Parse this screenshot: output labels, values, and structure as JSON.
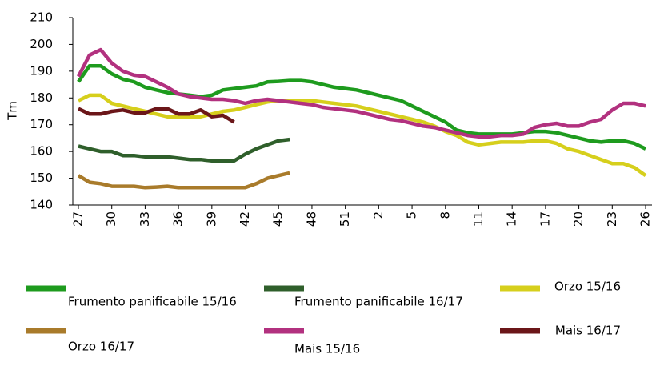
{
  "chart_data": {
    "type": "line",
    "y_label": "Tm",
    "categories": [
      "27",
      null,
      null,
      "30",
      null,
      null,
      "33",
      null,
      null,
      "36",
      null,
      null,
      "39",
      null,
      null,
      "42",
      null,
      null,
      "45",
      null,
      null,
      "48",
      null,
      null,
      "51",
      null,
      null,
      "2",
      null,
      null,
      "5",
      null,
      null,
      "8",
      null,
      null,
      "11",
      null,
      null,
      "14",
      null,
      null,
      "17",
      null,
      null,
      "20",
      null,
      null,
      "23",
      null,
      null,
      "26"
    ],
    "ylim": [
      140,
      210
    ],
    "yticks": [
      140,
      150,
      160,
      170,
      180,
      190,
      200,
      210
    ],
    "series": [
      {
        "name": "Frumento panificabile 15/16",
        "color": "#1e9b1e",
        "values": [
          186,
          192,
          192,
          189,
          187,
          186,
          184,
          183,
          182,
          181.5,
          181,
          180.5,
          181,
          183,
          183.5,
          184,
          184.5,
          186,
          186.2,
          186.5,
          186.5,
          186,
          185,
          184,
          183.5,
          183,
          182,
          181,
          180,
          179,
          177,
          175,
          173,
          171,
          168,
          167,
          166.5,
          166.5,
          166.5,
          166.5,
          167,
          167.5,
          167.5,
          167,
          166,
          165,
          164,
          163.5,
          164,
          164,
          163,
          161
        ]
      },
      {
        "name": "Frumento panificabile 16/17",
        "color": "#2f5f2b",
        "values": [
          162,
          161,
          160,
          160,
          158.5,
          158.5,
          158,
          158,
          158,
          157.5,
          157,
          157,
          156.5,
          156.5,
          156.5,
          159,
          161,
          162.5,
          164,
          164.5,
          null,
          null,
          null,
          null,
          null,
          null,
          null,
          null,
          null,
          null,
          null,
          null,
          null,
          null,
          null,
          null,
          null,
          null,
          null,
          null,
          null,
          null,
          null,
          null,
          null,
          null,
          null,
          null,
          null,
          null,
          null,
          null
        ]
      },
      {
        "name": "Orzo 15/16",
        "color": "#d6cf1c",
        "values": [
          179,
          181,
          181,
          178,
          177,
          176,
          175,
          174,
          173,
          173,
          173,
          173,
          174,
          175,
          175.5,
          176.5,
          177.5,
          178.5,
          179,
          179,
          179,
          179,
          178.5,
          178,
          177.5,
          177,
          176,
          175,
          174,
          173,
          172,
          171,
          169.5,
          167.5,
          166,
          163.5,
          162.5,
          163,
          163.5,
          163.5,
          163.5,
          164,
          164,
          163,
          161,
          160,
          158.5,
          157,
          155.5,
          155.5,
          154,
          151
        ]
      },
      {
        "name": "Orzo 16/17",
        "color": "#a97b2b",
        "values": [
          151,
          148.5,
          148,
          147,
          147,
          147,
          146.5,
          146.7,
          147,
          146.5,
          146.5,
          146.5,
          146.5,
          146.5,
          146.5,
          146.5,
          148,
          150,
          151,
          152,
          null,
          null,
          null,
          null,
          null,
          null,
          null,
          null,
          null,
          null,
          null,
          null,
          null,
          null,
          null,
          null,
          null,
          null,
          null,
          null,
          null,
          null,
          null,
          null,
          null,
          null,
          null,
          null,
          null,
          null,
          null,
          null
        ]
      },
      {
        "name": "Mais 15/16",
        "color": "#b2317f",
        "values": [
          188,
          196,
          198,
          193,
          190,
          188.5,
          188,
          186,
          184,
          181.5,
          180.5,
          180,
          179.5,
          179.5,
          179,
          178,
          179,
          179.5,
          179,
          178.5,
          178,
          177.5,
          176.5,
          176,
          175.5,
          175,
          174,
          173,
          172,
          171.5,
          170.5,
          169.5,
          169,
          168,
          167,
          166,
          165.5,
          165.5,
          166,
          166,
          166.5,
          169,
          170,
          170.5,
          169.5,
          169.5,
          171,
          172,
          175.5,
          178,
          178,
          177
        ]
      },
      {
        "name": "Mais 16/17",
        "color": "#6b1619",
        "values": [
          176,
          174,
          174,
          175,
          175.5,
          174.5,
          174.5,
          176,
          176,
          174,
          174,
          175.5,
          173,
          173.5,
          171,
          null,
          null,
          null,
          null,
          null,
          null,
          null,
          null,
          null,
          null,
          null,
          null,
          null,
          null,
          null,
          null,
          null,
          null,
          null,
          null,
          null,
          null,
          null,
          null,
          null,
          null,
          null,
          null,
          null,
          null,
          null,
          null,
          null,
          null,
          null,
          null,
          null
        ]
      }
    ]
  }
}
